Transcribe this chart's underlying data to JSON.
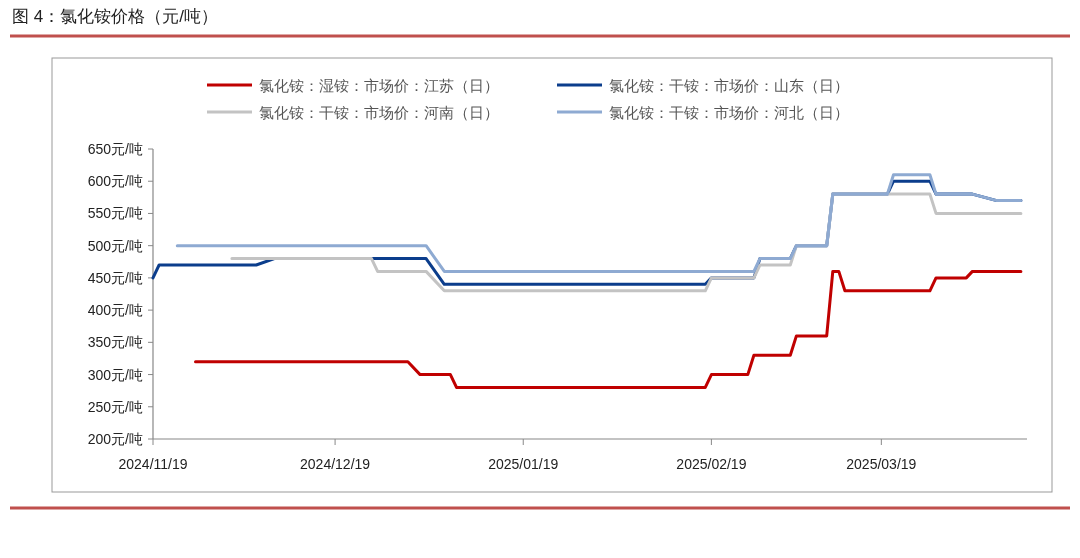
{
  "chart_data": {
    "type": "line",
    "title": "图 4：氯化铵价格（元/吨）",
    "xlim": [
      "2024-11-19",
      "2025-04-12"
    ],
    "xticks": [
      {
        "value": "2024-11-19",
        "label": "2024/11/19"
      },
      {
        "value": "2024-12-19",
        "label": "2024/12/19"
      },
      {
        "value": "2025-01-19",
        "label": "2025/01/19"
      },
      {
        "value": "2025-02-19",
        "label": "2025/02/19"
      },
      {
        "value": "2025-03-19",
        "label": "2025/03/19"
      }
    ],
    "ylim": [
      200,
      650
    ],
    "yticks": [
      {
        "value": 200,
        "label": "200元/吨"
      },
      {
        "value": 250,
        "label": "250元/吨"
      },
      {
        "value": 300,
        "label": "300元/吨"
      },
      {
        "value": 350,
        "label": "350元/吨"
      },
      {
        "value": 400,
        "label": "400元/吨"
      },
      {
        "value": 450,
        "label": "450元/吨"
      },
      {
        "value": 500,
        "label": "500元/吨"
      },
      {
        "value": 550,
        "label": "550元/吨"
      },
      {
        "value": 600,
        "label": "600元/吨"
      },
      {
        "value": 650,
        "label": "650元/吨"
      }
    ],
    "grid": false,
    "legend": "top",
    "marker": "none",
    "line_style": "solid",
    "series": [
      {
        "name": "氯化铵：湿铵：市场价：江苏（日）",
        "color": "#c00000",
        "x": [
          "2024-11-26",
          "2024-12-31",
          "2025-01-02",
          "2025-01-07",
          "2025-01-08",
          "2025-02-18",
          "2025-02-19",
          "2025-02-25",
          "2025-02-26",
          "2025-03-04",
          "2025-03-05",
          "2025-03-10",
          "2025-03-11",
          "2025-03-12",
          "2025-03-13",
          "2025-03-27",
          "2025-03-28",
          "2025-04-02",
          "2025-04-03",
          "2025-04-11"
        ],
        "values": [
          320,
          320,
          300,
          300,
          280,
          280,
          300,
          300,
          330,
          330,
          360,
          360,
          460,
          460,
          430,
          430,
          450,
          450,
          460,
          460
        ]
      },
      {
        "name": "氯化铵：干铵：市场价：山东（日）",
        "color": "#0b3d8c",
        "x": [
          "2024-11-19",
          "2024-11-20",
          "2024-12-06",
          "2024-12-09",
          "2025-01-03",
          "2025-01-06",
          "2025-02-18",
          "2025-02-19",
          "2025-02-26",
          "2025-02-27",
          "2025-03-04",
          "2025-03-05",
          "2025-03-10",
          "2025-03-11",
          "2025-03-20",
          "2025-03-21",
          "2025-03-27",
          "2025-03-28",
          "2025-04-03",
          "2025-04-07",
          "2025-04-11"
        ],
        "values": [
          450,
          470,
          470,
          480,
          480,
          440,
          440,
          450,
          450,
          480,
          480,
          500,
          500,
          580,
          580,
          600,
          600,
          580,
          580,
          570,
          570
        ]
      },
      {
        "name": "氯化铵：干铵：市场价：河南（日）",
        "color": "#c3c3c3",
        "x": [
          "2024-12-02",
          "2024-12-25",
          "2024-12-26",
          "2025-01-03",
          "2025-01-06",
          "2025-02-18",
          "2025-02-19",
          "2025-02-26",
          "2025-02-27",
          "2025-03-04",
          "2025-03-05",
          "2025-03-10",
          "2025-03-11",
          "2025-03-27",
          "2025-03-28",
          "2025-04-11"
        ],
        "values": [
          480,
          480,
          460,
          460,
          430,
          430,
          450,
          450,
          470,
          470,
          500,
          500,
          580,
          580,
          550,
          550
        ]
      },
      {
        "name": "氯化铵：干铵：市场价：河北（日）",
        "color": "#8eaad2",
        "x": [
          "2024-11-23",
          "2025-01-03",
          "2025-01-06",
          "2025-02-26",
          "2025-02-27",
          "2025-03-04",
          "2025-03-05",
          "2025-03-10",
          "2025-03-11",
          "2025-03-20",
          "2025-03-21",
          "2025-03-27",
          "2025-03-28",
          "2025-04-03",
          "2025-04-07",
          "2025-04-11"
        ],
        "values": [
          500,
          500,
          460,
          460,
          480,
          480,
          500,
          500,
          580,
          580,
          610,
          610,
          580,
          580,
          570,
          570
        ]
      }
    ]
  }
}
